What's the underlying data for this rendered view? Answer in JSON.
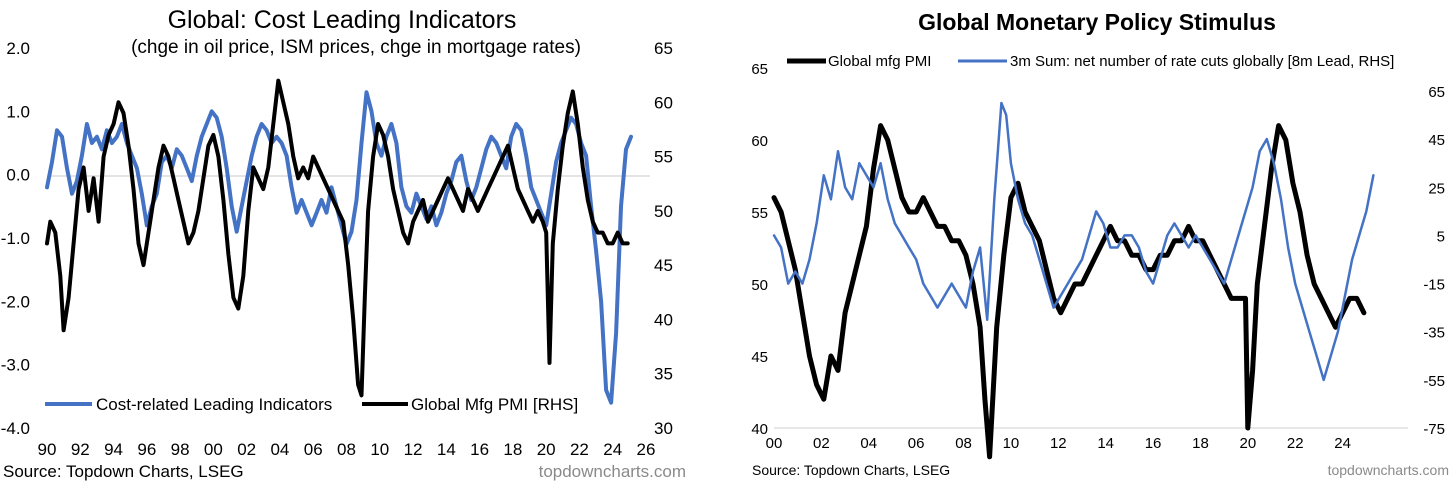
{
  "colors": {
    "blue": "#4472c4",
    "black": "#000000",
    "zero_line": "#c8c8c8",
    "watermark": "#8a8a8a"
  },
  "chart_data": [
    {
      "type": "line",
      "title": "Global: Cost Leading Indicators",
      "subtitle": "(chge in oil price, ISM prices, chge in mortgage rates)",
      "x_ticks": [
        "90",
        "92",
        "94",
        "96",
        "98",
        "00",
        "02",
        "04",
        "06",
        "08",
        "10",
        "12",
        "14",
        "16",
        "18",
        "20",
        "22",
        "24",
        "26"
      ],
      "x_range": [
        1990,
        2026
      ],
      "y_left_ticks": [
        "2.0",
        "1.0",
        "0.0",
        "-1.0",
        "-2.0",
        "-3.0",
        "-4.0"
      ],
      "y_left_range": [
        -4.0,
        2.0
      ],
      "y_right_ticks": [
        "65",
        "60",
        "55",
        "50",
        "45",
        "40",
        "35",
        "30"
      ],
      "y_right_range": [
        30,
        65
      ],
      "legend": [
        "Cost-related Leading Indicators",
        "Global Mfg PMI [RHS]"
      ],
      "source": "Source: Topdown Charts, LSEG",
      "watermark": "topdowncharts.com",
      "series": [
        {
          "name": "Cost-related Leading Indicators",
          "axis": "left",
          "x": [
            1990.0,
            1990.3,
            1990.6,
            1990.9,
            1991.2,
            1991.5,
            1991.8,
            1992.1,
            1992.4,
            1992.7,
            1993.0,
            1993.3,
            1993.6,
            1993.9,
            1994.2,
            1994.5,
            1994.8,
            1995.1,
            1995.4,
            1995.7,
            1996.0,
            1996.3,
            1996.6,
            1996.9,
            1997.2,
            1997.5,
            1997.8,
            1998.1,
            1998.4,
            1998.7,
            1999.0,
            1999.3,
            1999.6,
            1999.9,
            2000.2,
            2000.5,
            2000.8,
            2001.1,
            2001.4,
            2001.7,
            2002.0,
            2002.3,
            2002.6,
            2002.9,
            2003.2,
            2003.5,
            2003.8,
            2004.1,
            2004.4,
            2004.7,
            2005.0,
            2005.3,
            2005.6,
            2005.9,
            2006.2,
            2006.5,
            2006.8,
            2007.1,
            2007.4,
            2007.7,
            2008.0,
            2008.3,
            2008.6,
            2008.9,
            2009.2,
            2009.5,
            2009.8,
            2010.1,
            2010.4,
            2010.7,
            2011.0,
            2011.3,
            2011.6,
            2011.9,
            2012.2,
            2012.5,
            2012.8,
            2013.1,
            2013.4,
            2013.7,
            2014.0,
            2014.3,
            2014.6,
            2014.9,
            2015.2,
            2015.5,
            2015.8,
            2016.1,
            2016.4,
            2016.7,
            2017.0,
            2017.3,
            2017.6,
            2017.9,
            2018.2,
            2018.5,
            2018.8,
            2019.1,
            2019.4,
            2019.7,
            2020.0,
            2020.3,
            2020.6,
            2020.9,
            2021.2,
            2021.5,
            2021.8,
            2022.1,
            2022.4,
            2022.7,
            2023.0,
            2023.3,
            2023.6,
            2023.9,
            2024.2,
            2024.5,
            2024.8,
            2025.1
          ],
          "y": [
            -0.2,
            0.2,
            0.7,
            0.6,
            0.1,
            -0.3,
            -0.1,
            0.3,
            0.8,
            0.5,
            0.6,
            0.4,
            0.7,
            0.5,
            0.6,
            0.8,
            0.5,
            0.3,
            0.1,
            -0.3,
            -0.8,
            -0.5,
            -0.3,
            0.2,
            0.3,
            0.1,
            0.4,
            0.3,
            0.1,
            -0.1,
            0.3,
            0.6,
            0.8,
            1.0,
            0.9,
            0.6,
            0.1,
            -0.5,
            -0.9,
            -0.5,
            -0.1,
            0.3,
            0.6,
            0.8,
            0.7,
            0.5,
            0.6,
            0.5,
            0.3,
            -0.2,
            -0.6,
            -0.4,
            -0.6,
            -0.8,
            -0.6,
            -0.4,
            -0.6,
            -0.2,
            -0.5,
            -0.8,
            -1.1,
            -0.9,
            -0.4,
            0.5,
            1.3,
            1.0,
            0.5,
            0.3,
            0.6,
            0.8,
            0.5,
            -0.2,
            -0.5,
            -0.6,
            -0.3,
            -0.5,
            -0.7,
            -0.5,
            -0.8,
            -0.6,
            -0.3,
            -0.1,
            0.2,
            0.3,
            -0.1,
            -0.4,
            -0.2,
            0.1,
            0.4,
            0.6,
            0.5,
            0.3,
            0.1,
            0.6,
            0.8,
            0.7,
            0.3,
            -0.2,
            -0.4,
            -0.6,
            -0.8,
            -0.3,
            0.2,
            0.5,
            0.7,
            0.9,
            0.8,
            0.5,
            0.3,
            -0.5,
            -1.2,
            -2.0,
            -3.4,
            -3.6,
            -2.5,
            -0.5,
            0.4,
            0.6
          ]
        },
        {
          "name": "Global Mfg PMI [RHS]",
          "axis": "right",
          "x": [
            1990.0,
            1990.2,
            1990.5,
            1990.8,
            1991.0,
            1991.3,
            1991.6,
            1991.9,
            1992.2,
            1992.5,
            1992.8,
            1993.1,
            1993.4,
            1993.7,
            1994.0,
            1994.3,
            1994.6,
            1994.9,
            1995.2,
            1995.5,
            1995.8,
            1996.1,
            1996.4,
            1996.7,
            1997.0,
            1997.3,
            1997.6,
            1997.9,
            1998.2,
            1998.5,
            1998.8,
            1999.1,
            1999.4,
            1999.7,
            2000.0,
            2000.3,
            2000.6,
            2000.9,
            2001.2,
            2001.5,
            2001.8,
            2002.1,
            2002.4,
            2002.7,
            2003.0,
            2003.3,
            2003.6,
            2003.9,
            2004.2,
            2004.5,
            2004.8,
            2005.1,
            2005.4,
            2005.7,
            2006.0,
            2006.3,
            2006.6,
            2006.9,
            2007.2,
            2007.5,
            2007.8,
            2008.1,
            2008.4,
            2008.7,
            2008.9,
            2009.1,
            2009.3,
            2009.6,
            2009.9,
            2010.2,
            2010.5,
            2010.8,
            2011.1,
            2011.4,
            2011.7,
            2012.0,
            2012.3,
            2012.6,
            2012.9,
            2013.2,
            2013.5,
            2013.8,
            2014.1,
            2014.4,
            2014.7,
            2015.0,
            2015.3,
            2015.6,
            2015.9,
            2016.2,
            2016.5,
            2016.8,
            2017.1,
            2017.4,
            2017.7,
            2018.0,
            2018.3,
            2018.6,
            2018.9,
            2019.2,
            2019.5,
            2019.8,
            2020.0,
            2020.2,
            2020.4,
            2020.7,
            2021.0,
            2021.3,
            2021.6,
            2021.9,
            2022.2,
            2022.5,
            2022.8,
            2023.1,
            2023.4,
            2023.7,
            2024.0,
            2024.3,
            2024.6,
            2024.9
          ],
          "y": [
            47,
            49,
            48,
            44,
            39,
            42,
            47,
            52,
            54,
            50,
            53,
            49,
            55,
            57,
            58,
            60,
            59,
            56,
            52,
            47,
            45,
            48,
            51,
            54,
            56,
            55,
            53,
            51,
            49,
            47,
            48,
            50,
            53,
            56,
            57,
            55,
            51,
            46,
            42,
            41,
            44,
            50,
            54,
            53,
            52,
            54,
            58,
            62,
            60,
            58,
            55,
            53,
            54,
            53,
            55,
            54,
            53,
            52,
            51,
            50,
            49,
            45,
            40,
            34,
            33,
            42,
            50,
            55,
            58,
            57,
            55,
            52,
            50,
            48,
            47,
            49,
            50,
            51,
            49,
            50,
            51,
            52,
            53,
            52,
            51,
            50,
            52,
            51,
            50,
            51,
            52,
            53,
            54,
            55,
            56,
            54,
            52,
            51,
            50,
            49,
            50,
            49,
            48,
            36,
            47,
            52,
            56,
            59,
            61,
            58,
            54,
            51,
            49,
            48,
            48,
            47,
            47,
            48,
            47,
            47
          ]
        }
      ]
    },
    {
      "type": "line",
      "title": "Global Monetary Policy Stimulus",
      "x_ticks": [
        "00",
        "02",
        "04",
        "06",
        "08",
        "10",
        "12",
        "14",
        "16",
        "18",
        "20",
        "22",
        "24"
      ],
      "x_range": [
        2000,
        2026
      ],
      "y_left_ticks": [
        "65",
        "60",
        "55",
        "50",
        "45",
        "40"
      ],
      "y_left_range": [
        40,
        65
      ],
      "y_right_ticks": [
        "65",
        "45",
        "25",
        "5",
        "-15",
        "-35",
        "-55",
        "-75"
      ],
      "y_right_range": [
        -75,
        65
      ],
      "legend": [
        "Global mfg PMI",
        "3m Sum: net number of rate cuts globally [8m Lead, RHS]"
      ],
      "source": "Source: Topdown Charts, LSEG",
      "watermark": "topdowncharts.com",
      "series": [
        {
          "name": "Global mfg PMI",
          "axis": "left",
          "x": [
            2000.0,
            2000.3,
            2000.6,
            2000.9,
            2001.2,
            2001.5,
            2001.8,
            2002.1,
            2002.4,
            2002.7,
            2003.0,
            2003.3,
            2003.6,
            2003.9,
            2004.2,
            2004.5,
            2004.8,
            2005.1,
            2005.4,
            2005.7,
            2006.0,
            2006.3,
            2006.6,
            2006.9,
            2007.2,
            2007.5,
            2007.8,
            2008.1,
            2008.4,
            2008.7,
            2008.9,
            2009.1,
            2009.4,
            2009.7,
            2010.0,
            2010.3,
            2010.6,
            2010.9,
            2011.2,
            2011.5,
            2011.8,
            2012.1,
            2012.4,
            2012.7,
            2013.0,
            2013.3,
            2013.6,
            2013.9,
            2014.2,
            2014.5,
            2014.8,
            2015.1,
            2015.4,
            2015.7,
            2016.0,
            2016.3,
            2016.6,
            2016.9,
            2017.2,
            2017.5,
            2017.8,
            2018.1,
            2018.4,
            2018.7,
            2019.0,
            2019.3,
            2019.6,
            2019.9,
            2020.0,
            2020.2,
            2020.4,
            2020.7,
            2021.0,
            2021.3,
            2021.6,
            2021.9,
            2022.2,
            2022.5,
            2022.8,
            2023.1,
            2023.4,
            2023.7,
            2024.0,
            2024.3,
            2024.6,
            2024.9
          ],
          "y": [
            56,
            55,
            53,
            51,
            48,
            45,
            43,
            42,
            45,
            44,
            48,
            50,
            52,
            54,
            58,
            61,
            60,
            58,
            56,
            55,
            55,
            56,
            55,
            54,
            54,
            53,
            53,
            52,
            50,
            47,
            42,
            38,
            47,
            52,
            56,
            57,
            55,
            54,
            53,
            51,
            49,
            48,
            49,
            50,
            50,
            51,
            52,
            53,
            54,
            53,
            53,
            52,
            52,
            51,
            51,
            52,
            52,
            53,
            53,
            54,
            53,
            53,
            52,
            51,
            50,
            49,
            49,
            49,
            40,
            44,
            50,
            54,
            58,
            61,
            60,
            57,
            55,
            52,
            50,
            49,
            48,
            47,
            48,
            49,
            49,
            48
          ]
        },
        {
          "name": "3m Sum: net number of rate cuts globally [8m Lead, RHS]",
          "axis": "right",
          "x": [
            2000.0,
            2000.3,
            2000.6,
            2000.9,
            2001.2,
            2001.5,
            2001.8,
            2002.1,
            2002.4,
            2002.7,
            2003.0,
            2003.3,
            2003.6,
            2003.9,
            2004.2,
            2004.5,
            2004.8,
            2005.1,
            2005.4,
            2005.7,
            2006.0,
            2006.3,
            2006.6,
            2006.9,
            2007.2,
            2007.5,
            2007.8,
            2008.1,
            2008.4,
            2008.7,
            2009.0,
            2009.3,
            2009.6,
            2009.8,
            2010.0,
            2010.3,
            2010.6,
            2010.9,
            2011.2,
            2011.5,
            2011.8,
            2012.1,
            2012.4,
            2012.7,
            2013.0,
            2013.3,
            2013.6,
            2013.9,
            2014.2,
            2014.5,
            2014.8,
            2015.1,
            2015.4,
            2015.7,
            2016.0,
            2016.3,
            2016.6,
            2016.9,
            2017.2,
            2017.5,
            2017.8,
            2018.1,
            2018.4,
            2018.7,
            2019.0,
            2019.3,
            2019.6,
            2019.9,
            2020.2,
            2020.5,
            2020.8,
            2021.1,
            2021.4,
            2021.7,
            2022.0,
            2022.3,
            2022.6,
            2022.9,
            2023.2,
            2023.5,
            2023.8,
            2024.1,
            2024.4,
            2024.7,
            2025.0,
            2025.3
          ],
          "y": [
            5,
            0,
            -15,
            -10,
            -15,
            -5,
            10,
            30,
            20,
            40,
            25,
            20,
            35,
            30,
            25,
            35,
            20,
            10,
            5,
            0,
            -5,
            -15,
            -20,
            -25,
            -20,
            -15,
            -20,
            -25,
            -10,
            0,
            -30,
            20,
            60,
            55,
            35,
            20,
            10,
            5,
            -5,
            -15,
            -25,
            -20,
            -15,
            -10,
            -5,
            5,
            15,
            10,
            0,
            0,
            5,
            5,
            0,
            -10,
            -15,
            -5,
            5,
            10,
            5,
            0,
            5,
            0,
            -5,
            -10,
            -15,
            -5,
            5,
            15,
            25,
            40,
            45,
            35,
            20,
            0,
            -15,
            -25,
            -35,
            -45,
            -55,
            -45,
            -35,
            -20,
            -5,
            5,
            15,
            30
          ]
        }
      ]
    }
  ]
}
